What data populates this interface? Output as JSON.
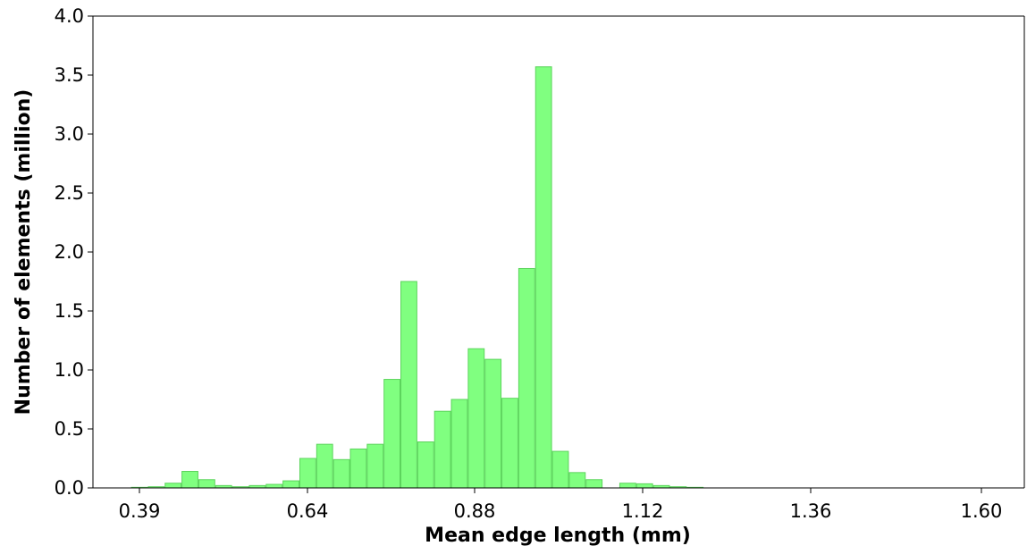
{
  "chart_data": {
    "type": "bar",
    "xlabel": "Mean edge length (mm)",
    "ylabel": "Number of elements (million)",
    "x_ticks": [
      "0.39",
      "0.64",
      "0.88",
      "1.12",
      "1.36",
      "1.60"
    ],
    "y_ticks": [
      "0.0",
      "0.5",
      "1.0",
      "1.5",
      "2.0",
      "2.5",
      "3.0",
      "3.5",
      "4.0"
    ],
    "xlim": [
      0.3,
      1.65
    ],
    "ylim": [
      0,
      4.0
    ],
    "bar_color": "#80ff80",
    "bar_edge_color": "#5cd45c",
    "bin_width": 0.024,
    "bins": [
      {
        "x": 0.4,
        "value": 0.005
      },
      {
        "x": 0.424,
        "value": 0.01
      },
      {
        "x": 0.448,
        "value": 0.04
      },
      {
        "x": 0.472,
        "value": 0.14
      },
      {
        "x": 0.496,
        "value": 0.07
      },
      {
        "x": 0.52,
        "value": 0.02
      },
      {
        "x": 0.544,
        "value": 0.01
      },
      {
        "x": 0.568,
        "value": 0.02
      },
      {
        "x": 0.592,
        "value": 0.03
      },
      {
        "x": 0.616,
        "value": 0.06
      },
      {
        "x": 0.64,
        "value": 0.25
      },
      {
        "x": 0.664,
        "value": 0.37
      },
      {
        "x": 0.688,
        "value": 0.24
      },
      {
        "x": 0.712,
        "value": 0.33
      },
      {
        "x": 0.736,
        "value": 0.37
      },
      {
        "x": 0.76,
        "value": 0.92
      },
      {
        "x": 0.784,
        "value": 1.75
      },
      {
        "x": 0.808,
        "value": 0.39
      },
      {
        "x": 0.832,
        "value": 0.65
      },
      {
        "x": 0.856,
        "value": 0.75
      },
      {
        "x": 0.88,
        "value": 1.18
      },
      {
        "x": 0.904,
        "value": 1.09
      },
      {
        "x": 0.928,
        "value": 0.76
      },
      {
        "x": 0.952,
        "value": 1.86
      },
      {
        "x": 0.976,
        "value": 3.57
      },
      {
        "x": 1.0,
        "value": 0.31
      },
      {
        "x": 1.024,
        "value": 0.13
      },
      {
        "x": 1.048,
        "value": 0.07
      },
      {
        "x": 1.096,
        "value": 0.04
      },
      {
        "x": 1.12,
        "value": 0.035
      },
      {
        "x": 1.144,
        "value": 0.02
      },
      {
        "x": 1.168,
        "value": 0.01
      },
      {
        "x": 1.192,
        "value": 0.005
      }
    ]
  }
}
